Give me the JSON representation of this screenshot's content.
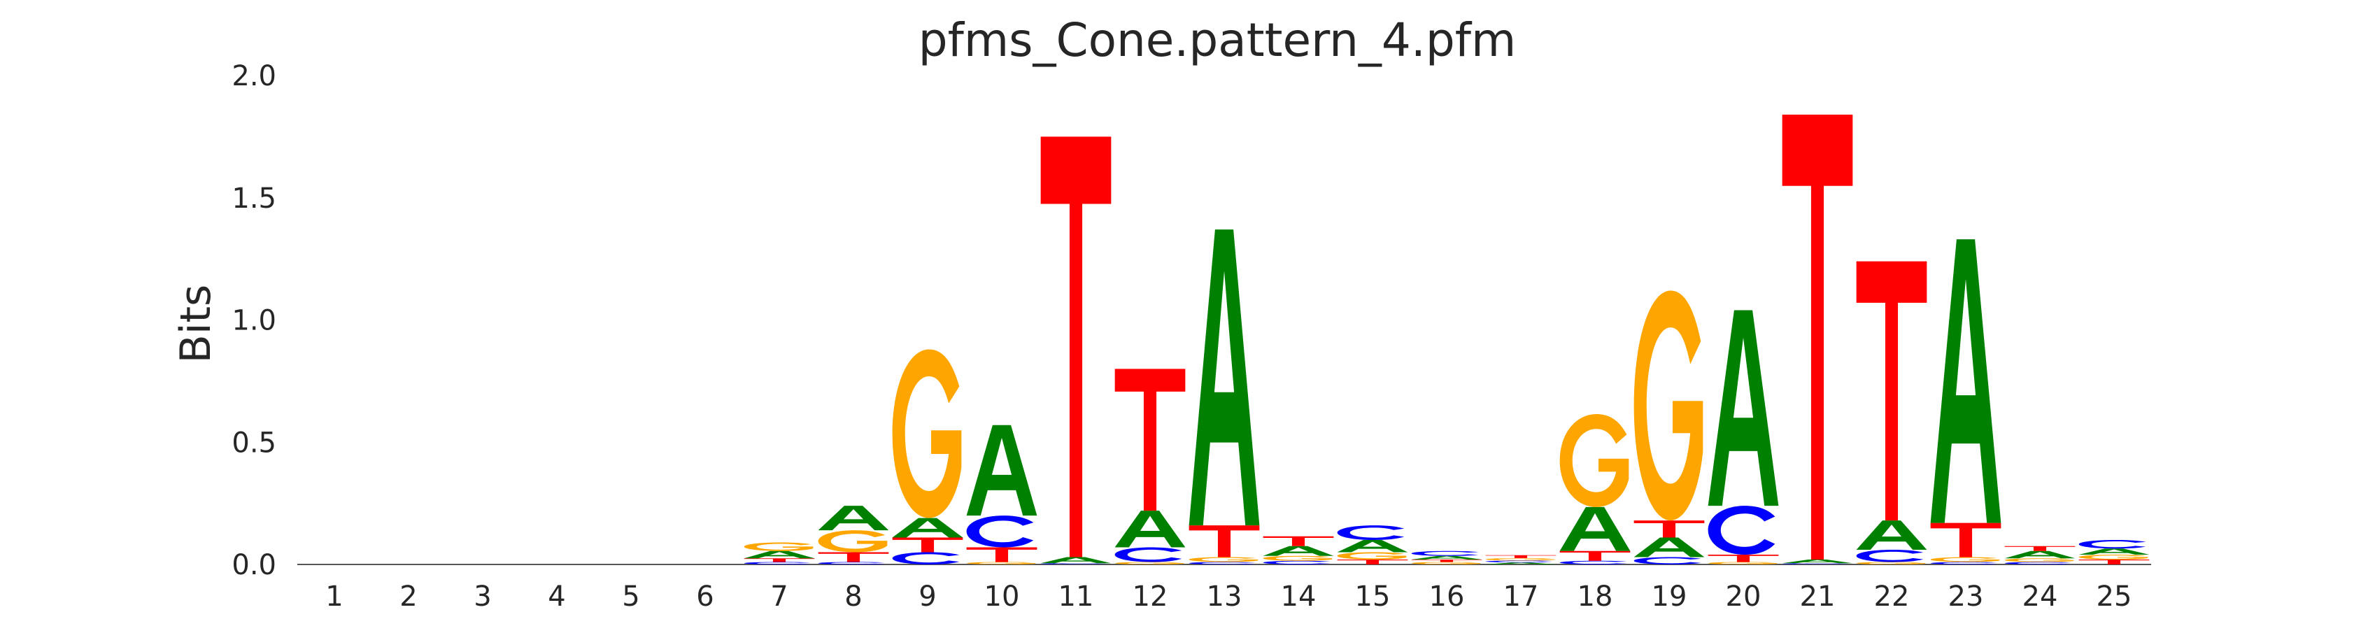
{
  "chart_data": {
    "type": "sequence-logo",
    "title": "pfms_Cone.pattern_4.pfm",
    "xlabel": "",
    "ylabel": "Bits",
    "ylim": [
      0,
      2.0
    ],
    "y_ticks": [
      "0.0",
      "0.5",
      "1.0",
      "1.5",
      "2.0"
    ],
    "x_ticks": [
      "1",
      "2",
      "3",
      "4",
      "5",
      "6",
      "7",
      "8",
      "9",
      "10",
      "11",
      "12",
      "13",
      "14",
      "15",
      "16",
      "17",
      "18",
      "19",
      "20",
      "21",
      "22",
      "23",
      "24",
      "25"
    ],
    "grid": false,
    "colors": {
      "A": "#008000",
      "C": "#0000ff",
      "G": "#ffa500",
      "T": "#ff0000"
    },
    "positions": [
      {
        "pos": 1,
        "stack": []
      },
      {
        "pos": 2,
        "stack": []
      },
      {
        "pos": 3,
        "stack": []
      },
      {
        "pos": 4,
        "stack": []
      },
      {
        "pos": 5,
        "stack": []
      },
      {
        "pos": 6,
        "stack": []
      },
      {
        "pos": 7,
        "stack": [
          {
            "base": "C",
            "bits": 0.01
          },
          {
            "base": "T",
            "bits": 0.015
          },
          {
            "base": "A",
            "bits": 0.03
          },
          {
            "base": "G",
            "bits": 0.035
          }
        ]
      },
      {
        "pos": 8,
        "stack": [
          {
            "base": "C",
            "bits": 0.01
          },
          {
            "base": "T",
            "bits": 0.04
          },
          {
            "base": "G",
            "bits": 0.09
          },
          {
            "base": "A",
            "bits": 0.1
          }
        ]
      },
      {
        "pos": 9,
        "stack": [
          {
            "base": "C",
            "bits": 0.05
          },
          {
            "base": "T",
            "bits": 0.06
          },
          {
            "base": "A",
            "bits": 0.08
          },
          {
            "base": "G",
            "bits": 0.69
          }
        ]
      },
      {
        "pos": 10,
        "stack": [
          {
            "base": "G",
            "bits": 0.01
          },
          {
            "base": "T",
            "bits": 0.06
          },
          {
            "base": "C",
            "bits": 0.13
          },
          {
            "base": "A",
            "bits": 0.37
          }
        ]
      },
      {
        "pos": 11,
        "stack": [
          {
            "base": "C",
            "bits": 0.005
          },
          {
            "base": "A",
            "bits": 0.025
          },
          {
            "base": "T",
            "bits": 1.72
          }
        ]
      },
      {
        "pos": 12,
        "stack": [
          {
            "base": "G",
            "bits": 0.01
          },
          {
            "base": "C",
            "bits": 0.06
          },
          {
            "base": "A",
            "bits": 0.15
          },
          {
            "base": "T",
            "bits": 0.58
          }
        ]
      },
      {
        "pos": 13,
        "stack": [
          {
            "base": "C",
            "bits": 0.01
          },
          {
            "base": "G",
            "bits": 0.02
          },
          {
            "base": "T",
            "bits": 0.13
          },
          {
            "base": "A",
            "bits": 1.21
          }
        ]
      },
      {
        "pos": 14,
        "stack": [
          {
            "base": "C",
            "bits": 0.015
          },
          {
            "base": "G",
            "bits": 0.02
          },
          {
            "base": "A",
            "bits": 0.04
          },
          {
            "base": "T",
            "bits": 0.04
          }
        ]
      },
      {
        "pos": 15,
        "stack": [
          {
            "base": "T",
            "bits": 0.02
          },
          {
            "base": "G",
            "bits": 0.03
          },
          {
            "base": "A",
            "bits": 0.05
          },
          {
            "base": "C",
            "bits": 0.06
          }
        ]
      },
      {
        "pos": 16,
        "stack": [
          {
            "base": "G",
            "bits": 0.01
          },
          {
            "base": "T",
            "bits": 0.01
          },
          {
            "base": "A",
            "bits": 0.015
          },
          {
            "base": "C",
            "bits": 0.02
          }
        ]
      },
      {
        "pos": 17,
        "stack": [
          {
            "base": "A",
            "bits": 0.008
          },
          {
            "base": "C",
            "bits": 0.008
          },
          {
            "base": "G",
            "bits": 0.01
          },
          {
            "base": "T",
            "bits": 0.012
          }
        ]
      },
      {
        "pos": 18,
        "stack": [
          {
            "base": "C",
            "bits": 0.015
          },
          {
            "base": "T",
            "bits": 0.04
          },
          {
            "base": "A",
            "bits": 0.18
          },
          {
            "base": "G",
            "bits": 0.38
          }
        ]
      },
      {
        "pos": 19,
        "stack": [
          {
            "base": "C",
            "bits": 0.03
          },
          {
            "base": "A",
            "bits": 0.08
          },
          {
            "base": "T",
            "bits": 0.07
          },
          {
            "base": "G",
            "bits": 0.94
          }
        ]
      },
      {
        "pos": 20,
        "stack": [
          {
            "base": "G",
            "bits": 0.01
          },
          {
            "base": "T",
            "bits": 0.03
          },
          {
            "base": "C",
            "bits": 0.2
          },
          {
            "base": "A",
            "bits": 0.8
          }
        ]
      },
      {
        "pos": 21,
        "stack": [
          {
            "base": "C",
            "bits": 0.005
          },
          {
            "base": "A",
            "bits": 0.015
          },
          {
            "base": "T",
            "bits": 1.82
          }
        ]
      },
      {
        "pos": 22,
        "stack": [
          {
            "base": "G",
            "bits": 0.01
          },
          {
            "base": "C",
            "bits": 0.05
          },
          {
            "base": "A",
            "bits": 0.12
          },
          {
            "base": "T",
            "bits": 1.06
          }
        ]
      },
      {
        "pos": 23,
        "stack": [
          {
            "base": "C",
            "bits": 0.01
          },
          {
            "base": "G",
            "bits": 0.02
          },
          {
            "base": "T",
            "bits": 0.14
          },
          {
            "base": "A",
            "bits": 1.16
          }
        ]
      },
      {
        "pos": 24,
        "stack": [
          {
            "base": "C",
            "bits": 0.01
          },
          {
            "base": "G",
            "bits": 0.015
          },
          {
            "base": "A",
            "bits": 0.03
          },
          {
            "base": "T",
            "bits": 0.02
          }
        ]
      },
      {
        "pos": 25,
        "stack": [
          {
            "base": "T",
            "bits": 0.02
          },
          {
            "base": "G",
            "bits": 0.02
          },
          {
            "base": "A",
            "bits": 0.025
          },
          {
            "base": "C",
            "bits": 0.035
          }
        ]
      }
    ]
  }
}
